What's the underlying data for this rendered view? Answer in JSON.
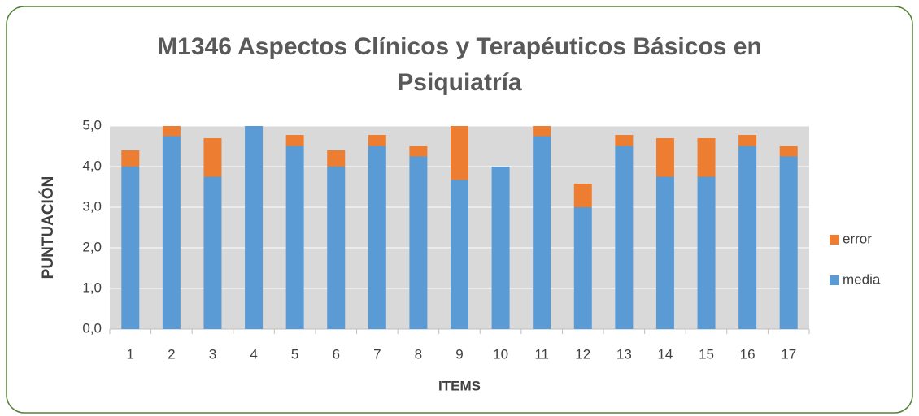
{
  "chart_data": {
    "type": "stacked_bar",
    "title": "M1346 Aspectos Clínicos y Terapéuticos Básicos en Psiquiatría",
    "xlabel": "ITEMS",
    "ylabel": "PUNTUACIÓN",
    "categories": [
      "1",
      "2",
      "3",
      "4",
      "5",
      "6",
      "7",
      "8",
      "9",
      "10",
      "11",
      "12",
      "13",
      "14",
      "15",
      "16",
      "17"
    ],
    "series": [
      {
        "name": "media",
        "color": "#5b9bd5",
        "values": [
          4.0,
          4.75,
          3.75,
          5.0,
          4.5,
          4.0,
          4.5,
          4.25,
          3.67,
          4.0,
          4.75,
          3.0,
          4.5,
          3.75,
          3.75,
          4.5,
          4.25
        ]
      },
      {
        "name": "error",
        "color": "#ed7d31",
        "values": [
          0.4,
          0.25,
          0.95,
          0,
          0.28,
          0.4,
          0.28,
          0.25,
          1.33,
          0,
          0.25,
          0.58,
          0.28,
          0.95,
          0.95,
          0.28,
          0.25
        ]
      }
    ],
    "ylim": [
      0,
      5
    ],
    "yticks": [
      {
        "value": 0,
        "label": "0,0"
      },
      {
        "value": 1,
        "label": "1,0"
      },
      {
        "value": 2,
        "label": "2,0"
      },
      {
        "value": 3,
        "label": "3,0"
      },
      {
        "value": 4,
        "label": "4,0"
      },
      {
        "value": 5,
        "label": "5,0"
      }
    ],
    "grid": true,
    "legend": "right"
  }
}
